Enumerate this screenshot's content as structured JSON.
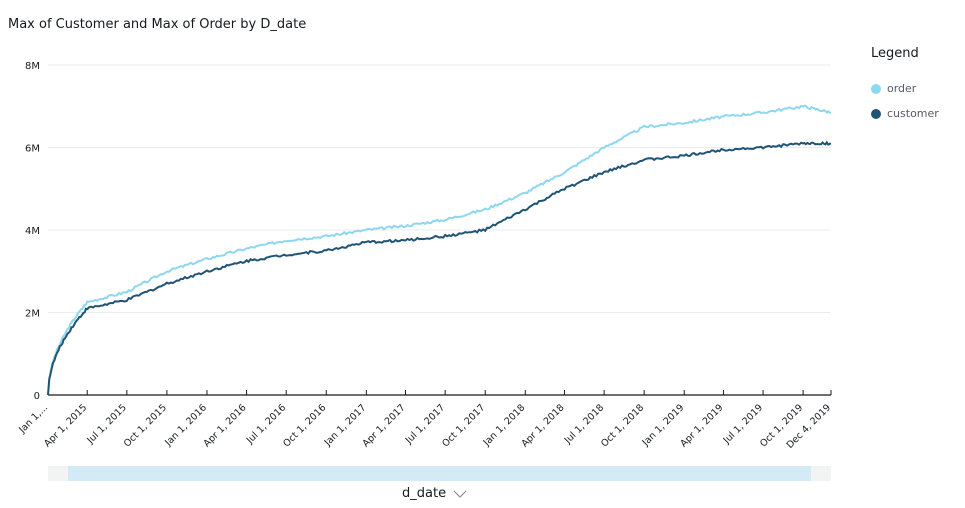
{
  "chart_data": {
    "type": "line",
    "title": "Max of Customer and Max of Order by D_date",
    "xlabel": "d_date",
    "ylabel": "",
    "ylim": [
      0,
      8000000
    ],
    "y_ticks": [
      "0",
      "2M",
      "4M",
      "6M",
      "8M"
    ],
    "y_tick_values": [
      0,
      2000000,
      4000000,
      6000000,
      8000000
    ],
    "x_ticks": [
      "Jan 1,...",
      "Apr 1, 2015",
      "Jul 1, 2015",
      "Oct 1, 2015",
      "Jan 1, 2016",
      "Apr 1, 2016",
      "Jul 1, 2016",
      "Oct 1, 2016",
      "Jan 1, 2017",
      "Apr 1, 2017",
      "Jul 1, 2017",
      "Oct 1, 2017",
      "Jan 1, 2018",
      "Apr 1, 2018",
      "Jul 1, 2018",
      "Oct 1, 2018",
      "Jan 1, 2019",
      "Apr 1, 2019",
      "Jul 1, 2019",
      "Oct 1, 2019",
      "Dec 4, 2019"
    ],
    "x_days": [
      0,
      90,
      181,
      273,
      365,
      456,
      547,
      639,
      731,
      821,
      912,
      1004,
      1096,
      1186,
      1277,
      1369,
      1461,
      1551,
      1642,
      1734,
      1798
    ],
    "xlim_days": [
      0,
      1798
    ],
    "legend_title": "Legend",
    "legend_position": "right",
    "series": [
      {
        "name": "order",
        "color": "#8dd7ef",
        "values": [
          0,
          2250000,
          2500000,
          3000000,
          3300000,
          3550000,
          3750000,
          3850000,
          4000000,
          4100000,
          4250000,
          4500000,
          4900000,
          5400000,
          6000000,
          6500000,
          6600000,
          6750000,
          6850000,
          7000000,
          6850000
        ]
      },
      {
        "name": "customer",
        "color": "#1f5475",
        "values": [
          0,
          2100000,
          2300000,
          2700000,
          3000000,
          3250000,
          3400000,
          3500000,
          3700000,
          3750000,
          3850000,
          4000000,
          4500000,
          5000000,
          5400000,
          5700000,
          5800000,
          5950000,
          6000000,
          6100000,
          6100000
        ]
      }
    ]
  }
}
